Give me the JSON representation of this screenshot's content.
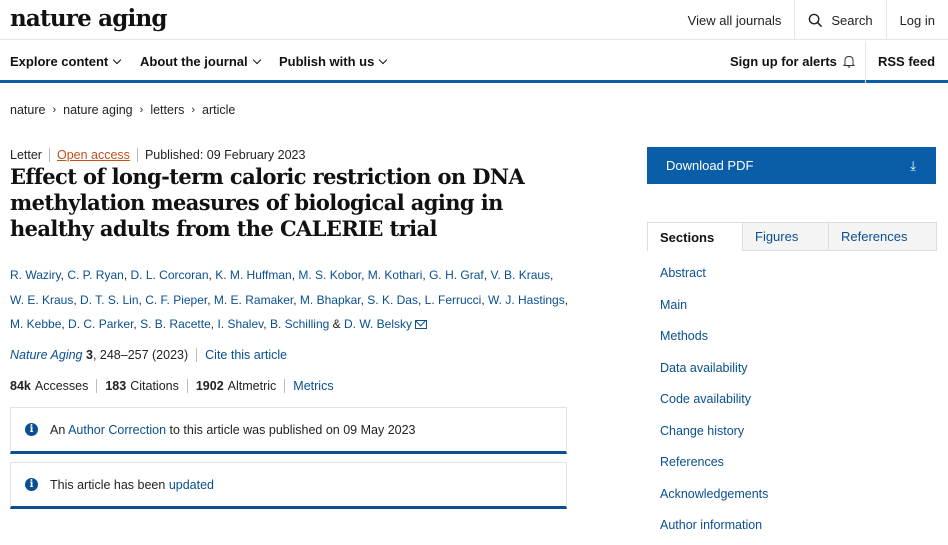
{
  "header": {
    "logo": "nature aging",
    "links": [
      "View all journals",
      "Search",
      "Log in"
    ]
  },
  "nav": {
    "items": [
      "Explore content",
      "About the journal",
      "Publish with us"
    ],
    "alerts": "Sign up for alerts",
    "rss": "RSS feed"
  },
  "breadcrumb": [
    "nature",
    "nature aging",
    "letters",
    "article"
  ],
  "article": {
    "type": "Letter",
    "access": "Open access",
    "published": "Published: 09 February 2023",
    "title": "Effect of long-term caloric restriction on DNA methylation measures of biological aging in healthy adults from the CALERIE trial",
    "authors": [
      "R. Waziry",
      "C. P. Ryan",
      "D. L. Corcoran",
      "K. M. Huffman",
      "M. S. Kobor",
      "M. Kothari",
      "G. H. Graf",
      "V. B. Kraus",
      "W. E. Kraus",
      "D. T. S. Lin",
      "C. F. Pieper",
      "M. E. Ramaker",
      "M. Bhapkar",
      "S. K. Das",
      "L. Ferrucci",
      "W. J. Hastings",
      "M. Kebbe",
      "D. C. Parker",
      "S. B. Racette",
      "I. Shalev",
      "B. Schilling",
      "D. W. Belsky"
    ],
    "journal": "Nature Aging",
    "volume": "3",
    "pages": ", 248–257 (2023)",
    "cite": "Cite this article",
    "metrics": {
      "accesses_value": "84k",
      "accesses_label": "Accesses",
      "citations_value": "183",
      "citations_label": "Citations",
      "altmetric_value": "1902",
      "altmetric_label": "Altmetric",
      "metrics_link": "Metrics"
    },
    "notice1": {
      "pre": "An ",
      "link": "Author Correction",
      "post": " to this article was published on 09 May 2023"
    },
    "notice2": {
      "pre": "This article has been ",
      "link": "updated"
    }
  },
  "sidebar": {
    "download": "Download PDF",
    "tabs": [
      "Sections",
      "Figures",
      "References"
    ],
    "sections": [
      "Abstract",
      "Main",
      "Methods",
      "Data availability",
      "Code availability",
      "Change history",
      "References",
      "Acknowledgements",
      "Author information"
    ]
  },
  "colors": {
    "accent": "#0a5ea8",
    "link": "#0a4f8f",
    "open_access": "#c3511a"
  }
}
